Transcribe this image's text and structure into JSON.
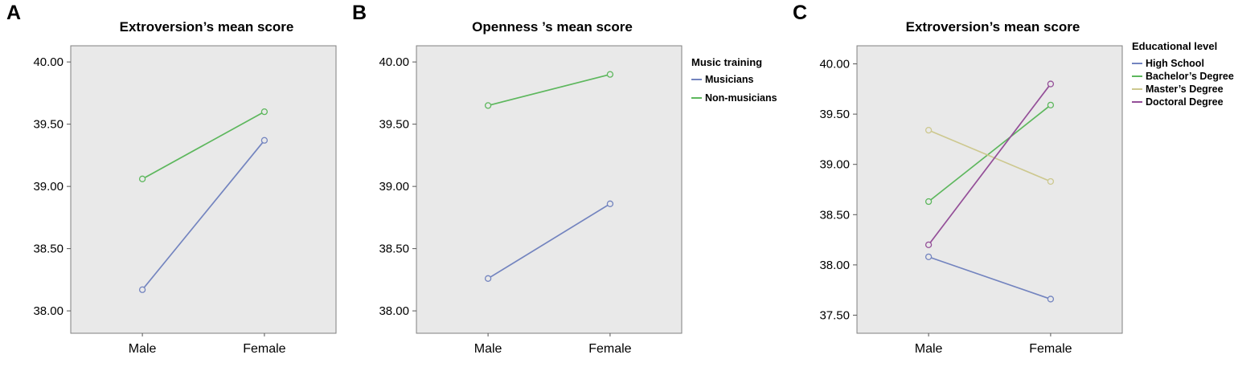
{
  "chart_data": [
    {
      "panel_label": "A",
      "type": "line",
      "title": "Extroversion’s mean score",
      "categories": [
        "Male",
        "Female"
      ],
      "y_tick_labels": [
        "38.00",
        "38.50",
        "39.00",
        "39.50",
        "40.00"
      ],
      "ylim": [
        37.82,
        40.13
      ],
      "legend_title": null,
      "grid": false,
      "plot_background": "#e9e9e9",
      "series": [
        {
          "name": "Musicians",
          "color": "#7384bf",
          "values": [
            38.17,
            39.37
          ]
        },
        {
          "name": "Non-musicians",
          "color": "#5db75d",
          "values": [
            39.06,
            39.6
          ]
        }
      ]
    },
    {
      "panel_label": "B",
      "type": "line",
      "title": "Openness ’s mean score",
      "categories": [
        "Male",
        "Female"
      ],
      "y_tick_labels": [
        "38.00",
        "38.50",
        "39.00",
        "39.50",
        "40.00"
      ],
      "ylim": [
        37.82,
        40.13
      ],
      "legend_title": "Music training",
      "grid": false,
      "plot_background": "#e9e9e9",
      "series": [
        {
          "name": "Musicians",
          "color": "#7384bf",
          "values": [
            38.26,
            38.86
          ]
        },
        {
          "name": "Non-musicians",
          "color": "#5db75d",
          "values": [
            39.65,
            39.9
          ]
        }
      ]
    },
    {
      "panel_label": "C",
      "type": "line",
      "title": "Extroversion’s mean score",
      "categories": [
        "Male",
        "Female"
      ],
      "y_tick_labels": [
        "37.50",
        "38.00",
        "38.50",
        "39.00",
        "39.50",
        "40.00"
      ],
      "ylim": [
        37.32,
        40.18
      ],
      "legend_title": "Educational level",
      "grid": false,
      "plot_background": "#e9e9e9",
      "series": [
        {
          "name": "High School",
          "color": "#7384bf",
          "values": [
            38.08,
            37.66
          ]
        },
        {
          "name": "Bachelor’s Degree",
          "color": "#5db75d",
          "values": [
            38.63,
            39.59
          ]
        },
        {
          "name": "Master’s Degree",
          "color": "#cdc88f",
          "values": [
            39.34,
            38.83
          ]
        },
        {
          "name": "Doctoral Degree",
          "color": "#944f98",
          "values": [
            38.2,
            39.8
          ]
        }
      ]
    }
  ]
}
